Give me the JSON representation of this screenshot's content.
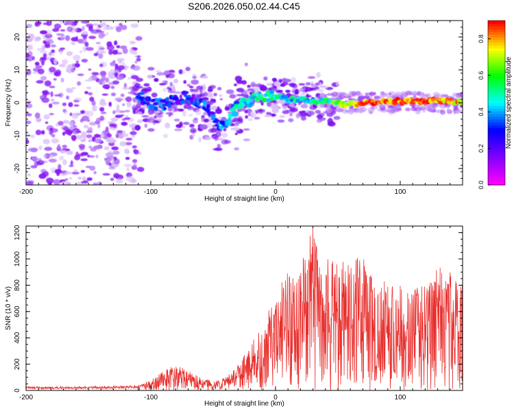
{
  "title": "S206.2026.050.02.44.C45",
  "chart_data": [
    {
      "type": "heatmap",
      "xlabel": "Height of straight line (km)",
      "ylabel": "Frequency (Hz)",
      "xlim": [
        -200,
        150
      ],
      "ylim": [
        -25,
        25
      ],
      "x_ticks": [
        -200,
        -100,
        0,
        100
      ],
      "y_ticks": [
        -20,
        -10,
        0,
        10,
        20
      ],
      "colorbar": {
        "label": "Normalized spectral amplitude",
        "range": [
          0.0,
          0.9
        ],
        "ticks": [
          0.0,
          0.2,
          0.4,
          0.6,
          0.8
        ],
        "colormap": [
          "#ff00ff",
          "#8000ff",
          "#0000ff",
          "#00ffff",
          "#00ff00",
          "#ffff00",
          "#ff0000"
        ]
      },
      "ridge": {
        "x": [
          -110,
          -100,
          -90,
          -80,
          -70,
          -60,
          -50,
          -45,
          -40,
          -35,
          -30,
          -25,
          -20,
          -10,
          0,
          10,
          20,
          30,
          40,
          50,
          60,
          70,
          80,
          90,
          100,
          110,
          120,
          130,
          140,
          150
        ],
        "y": [
          2,
          0,
          -1,
          1,
          2,
          0,
          -4,
          -7,
          -6,
          -3,
          -1,
          0,
          0.5,
          2,
          2,
          1,
          1,
          0.5,
          0.5,
          0,
          -0.5,
          0,
          0,
          0.5,
          0.5,
          0.5,
          0.5,
          0.5,
          0.5,
          0.5
        ],
        "amplitude": [
          0.25,
          0.3,
          0.3,
          0.25,
          0.25,
          0.3,
          0.3,
          0.35,
          0.35,
          0.4,
          0.45,
          0.45,
          0.5,
          0.5,
          0.5,
          0.45,
          0.45,
          0.45,
          0.5,
          0.6,
          0.7,
          0.85,
          0.85,
          0.8,
          0.85,
          0.85,
          0.85,
          0.8,
          0.8,
          0.75
        ]
      },
      "grid": false
    },
    {
      "type": "line",
      "xlabel": "Height of straight line (km)",
      "ylabel": "SNR (10 * v/v)",
      "xlim": [
        -200,
        150
      ],
      "ylim": [
        0,
        1250
      ],
      "x_ticks": [
        -200,
        -100,
        0,
        100
      ],
      "y_ticks": [
        0,
        200,
        400,
        600,
        800,
        1000,
        1200
      ],
      "color": "#e8302e",
      "grid": false,
      "envelope": {
        "x": [
          -200,
          -150,
          -110,
          -100,
          -90,
          -80,
          -70,
          -60,
          -50,
          -40,
          -30,
          -20,
          -10,
          0,
          10,
          20,
          30,
          40,
          50,
          60,
          70,
          80,
          90,
          100,
          110,
          120,
          130,
          140,
          150
        ],
        "y": [
          30,
          30,
          40,
          80,
          150,
          200,
          150,
          100,
          70,
          100,
          200,
          350,
          500,
          750,
          900,
          1000,
          1250,
          1000,
          1000,
          950,
          1050,
          800,
          850,
          800,
          750,
          850,
          950,
          900,
          850
        ]
      }
    }
  ]
}
